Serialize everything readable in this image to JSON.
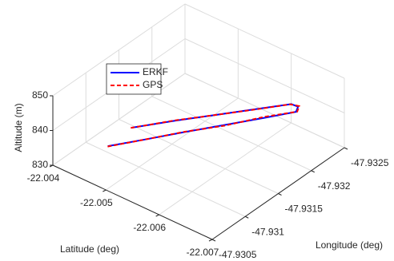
{
  "chart_data": {
    "type": "line3d",
    "xlabel": "Longitude (deg)",
    "ylabel": "Latitude (deg)",
    "zlabel": "Altitude (m)",
    "xlim": [
      -47.9325,
      -47.9305
    ],
    "xticks": [
      -47.9325,
      -47.932,
      -47.9315,
      -47.931,
      -47.9305
    ],
    "ylim": [
      -22.007,
      -22.004
    ],
    "yticks": [
      -22.007,
      -22.006,
      -22.005,
      -22.004
    ],
    "zlim": [
      830,
      850
    ],
    "zticks": [
      830,
      840,
      850
    ],
    "grid": true,
    "legend": "upper left",
    "series": [
      {
        "name": "ERKF",
        "color": "#0000ff",
        "style": "solid",
        "x": [
          -47.93072,
          -47.931,
          -47.9313,
          -47.9316,
          -47.9319,
          -47.93213,
          -47.93221,
          -47.93218,
          -47.9319,
          -47.9316,
          -47.9313,
          -47.93097
        ],
        "y": [
          -22.00476,
          -22.00512,
          -22.00549,
          -22.00587,
          -22.00625,
          -22.00655,
          -22.00649,
          -22.0064,
          -22.00605,
          -22.00567,
          -22.00529,
          -22.0049
        ],
        "z": [
          838,
          838.8,
          839.6,
          840.4,
          841.2,
          842,
          842,
          842.5,
          842.2,
          841.8,
          841.4,
          841
        ]
      },
      {
        "name": "GPS",
        "color": "#ff0000",
        "style": "dashed",
        "x": [
          -47.93071,
          -47.93101,
          -47.93131,
          -47.93159,
          -47.93191,
          -47.93214,
          -47.93222,
          -47.93217,
          -47.93191,
          -47.93159,
          -47.93131,
          -47.93096
        ],
        "y": [
          -22.00477,
          -22.00513,
          -22.00548,
          -22.00588,
          -22.00624,
          -22.00656,
          -22.0065,
          -22.00639,
          -22.00606,
          -22.00566,
          -22.0053,
          -22.00489
        ],
        "z": [
          838.1,
          838.8,
          839.5,
          840.4,
          841.3,
          842,
          842.1,
          842.5,
          842.1,
          841.8,
          841.5,
          841
        ]
      }
    ]
  }
}
